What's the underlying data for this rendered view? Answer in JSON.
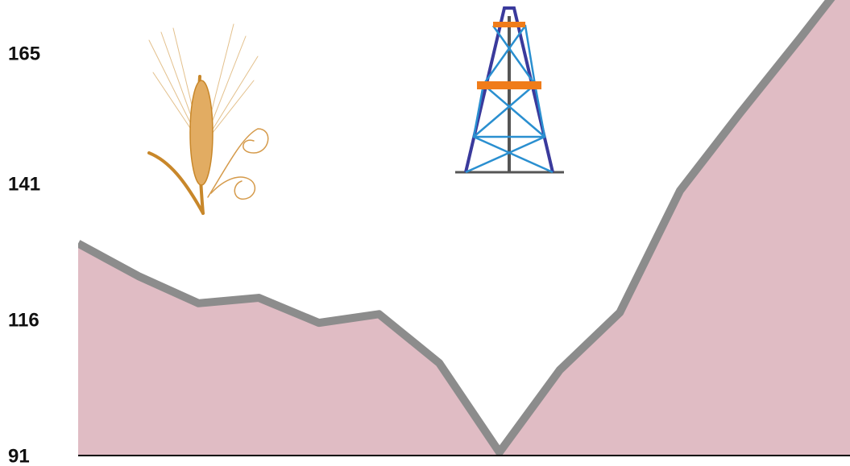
{
  "chart_data": {
    "type": "area",
    "categories": [
      null,
      null,
      null,
      null,
      null,
      null,
      null,
      null,
      null,
      null,
      null,
      null,
      null,
      null
    ],
    "values": [
      130,
      124,
      119,
      120,
      115.4,
      117,
      108,
      91.6,
      106.7,
      117.3,
      139.7,
      154,
      167.8,
      182
    ],
    "color": "#e0bcc4",
    "line_color": "#8c8c8c",
    "ylim": [
      91,
      175
    ],
    "yticks": [
      91,
      116,
      141,
      165
    ]
  }
}
